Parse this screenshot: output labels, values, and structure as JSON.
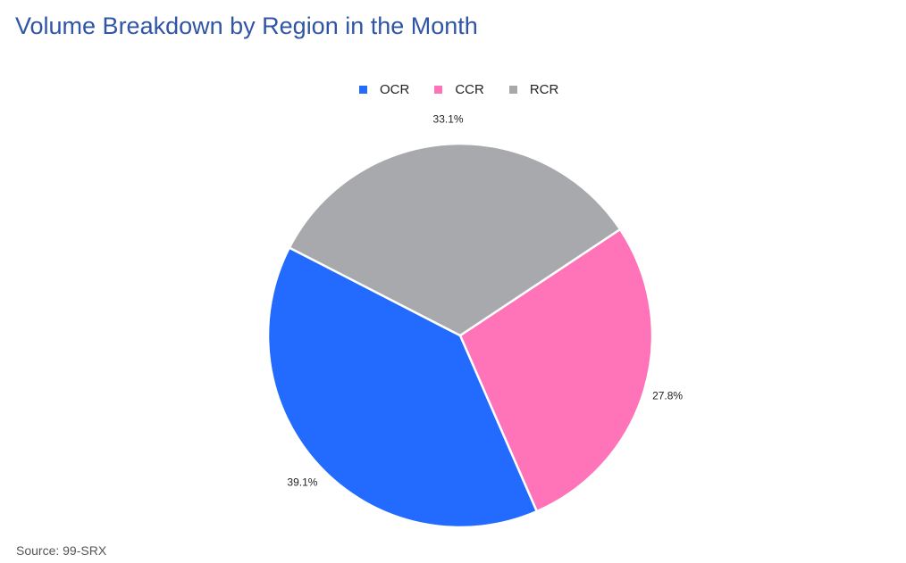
{
  "chart_data": {
    "type": "pie",
    "title": "Volume Breakdown by Region in the Month",
    "legend_position": "top-center",
    "slices": [
      {
        "label": "OCR",
        "value": 39.1,
        "value_label": "39.1%",
        "color": "#236bff"
      },
      {
        "label": "CCR",
        "value": 27.8,
        "value_label": "27.8%",
        "color": "#ff74b8"
      },
      {
        "label": "RCR",
        "value": 33.1,
        "value_label": "33.1%",
        "color": "#a8a9ac"
      }
    ]
  },
  "source": "Source: 99-SRX"
}
